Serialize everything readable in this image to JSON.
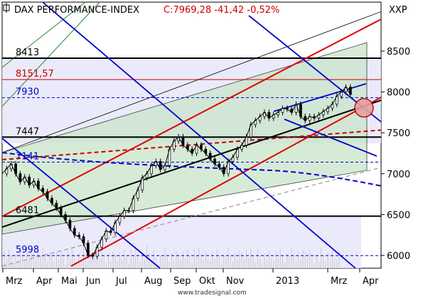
{
  "header": {
    "title": "DAX PERFORMANCE-INDEX",
    "quote": "C:7969,28 -41,42 -0,52%",
    "axis_code": "XXP",
    "watermark": "www.tradesignal.com",
    "quote_color": "#cc0000"
  },
  "chart_data": {
    "type": "line",
    "title": "DAX PERFORMANCE-INDEX",
    "instrument_code": "XXP",
    "last_close": "7969,28",
    "change": "-41,42",
    "change_pct": "-0,52%",
    "x_labels": [
      "Mrz",
      "Apr",
      "Mai",
      "Jun",
      "Jul",
      "Aug",
      "Sep",
      "Okt",
      "Nov",
      "2013",
      "Mrz",
      "Apr"
    ],
    "y_ticks": [
      6000,
      6500,
      7000,
      7500,
      8000,
      8500
    ],
    "y_tick_labels": [
      "6000",
      "6500",
      "7000",
      "7500",
      "8000",
      "8500"
    ],
    "ylim": [
      5880,
      8820
    ],
    "levels": [
      {
        "label": "8413",
        "value": 8413,
        "color": "#000000"
      },
      {
        "label": "8151,57",
        "value": 8151.57,
        "color": "#cc0000"
      },
      {
        "label": "7930",
        "value": 7930,
        "color": "#0000cc"
      },
      {
        "label": "7447",
        "value": 7447,
        "color": "#000000"
      },
      {
        "label": "7141",
        "value": 7141,
        "color": "#0000cc"
      },
      {
        "label": "6481",
        "value": 6481,
        "color": "#000000"
      },
      {
        "label": "5998",
        "value": 5998,
        "color": "#0000cc"
      }
    ],
    "price_series": {
      "name": "DAX",
      "points": [
        [
          0,
          7000
        ],
        [
          2,
          7060
        ],
        [
          4,
          7120
        ],
        [
          6,
          7000
        ],
        [
          8,
          6900
        ],
        [
          10,
          6960
        ],
        [
          12,
          6860
        ],
        [
          14,
          6910
        ],
        [
          16,
          6820
        ],
        [
          18,
          6780
        ],
        [
          20,
          6700
        ],
        [
          22,
          6640
        ],
        [
          24,
          6580
        ],
        [
          26,
          6500
        ],
        [
          28,
          6430
        ],
        [
          30,
          6330
        ],
        [
          32,
          6250
        ],
        [
          34,
          6230
        ],
        [
          36,
          6150
        ],
        [
          38,
          6000
        ],
        [
          40,
          5990
        ],
        [
          42,
          6100
        ],
        [
          44,
          6200
        ],
        [
          46,
          6300
        ],
        [
          48,
          6280
        ],
        [
          50,
          6400
        ],
        [
          52,
          6480
        ],
        [
          54,
          6550
        ],
        [
          56,
          6550
        ],
        [
          58,
          6700
        ],
        [
          60,
          6800
        ],
        [
          62,
          6950
        ],
        [
          64,
          7000
        ],
        [
          66,
          7100
        ],
        [
          68,
          7150
        ],
        [
          70,
          7050
        ],
        [
          72,
          7100
        ],
        [
          74,
          7300
        ],
        [
          76,
          7400
        ],
        [
          78,
          7450
        ],
        [
          80,
          7350
        ],
        [
          82,
          7300
        ],
        [
          84,
          7250
        ],
        [
          86,
          7350
        ],
        [
          88,
          7300
        ],
        [
          90,
          7250
        ],
        [
          92,
          7180
        ],
        [
          94,
          7120
        ],
        [
          96,
          7080
        ],
        [
          98,
          7000
        ],
        [
          100,
          7150
        ],
        [
          102,
          7200
        ],
        [
          104,
          7300
        ],
        [
          106,
          7350
        ],
        [
          108,
          7450
        ],
        [
          110,
          7600
        ],
        [
          112,
          7650
        ],
        [
          114,
          7700
        ],
        [
          116,
          7750
        ],
        [
          118,
          7680
        ],
        [
          120,
          7720
        ],
        [
          122,
          7750
        ],
        [
          124,
          7800
        ],
        [
          126,
          7790
        ],
        [
          128,
          7750
        ],
        [
          130,
          7850
        ],
        [
          132,
          7700
        ],
        [
          134,
          7650
        ],
        [
          136,
          7700
        ],
        [
          138,
          7680
        ],
        [
          140,
          7720
        ],
        [
          142,
          7760
        ],
        [
          144,
          7800
        ],
        [
          146,
          7850
        ],
        [
          148,
          7950
        ],
        [
          150,
          8000
        ],
        [
          152,
          8060
        ],
        [
          154,
          7970
        ]
      ]
    }
  }
}
